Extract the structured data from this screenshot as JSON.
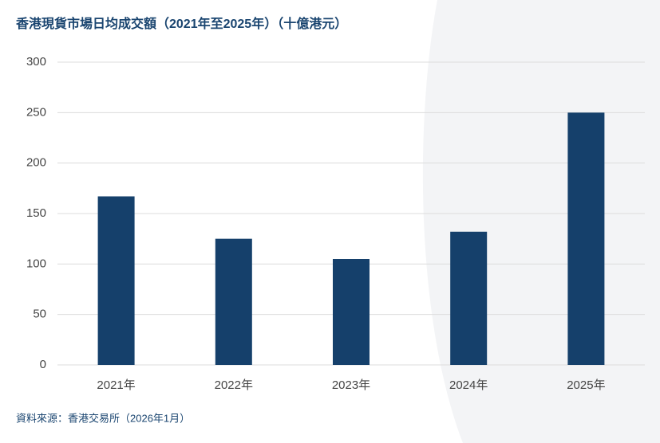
{
  "chart_data": {
    "type": "bar",
    "title": "香港現貨市場日均成交額（2021年至2025年）（十億港元）",
    "categories": [
      "2021年",
      "2022年",
      "2023年",
      "2024年",
      "2025年"
    ],
    "values": [
      167,
      125,
      105,
      132,
      250
    ],
    "color": "#15406b",
    "ylim": [
      0,
      300
    ],
    "yticks": [
      0,
      50,
      100,
      150,
      200,
      250,
      300
    ],
    "grid": true,
    "source": "資料來源：香港交易所（2026年1月）"
  }
}
